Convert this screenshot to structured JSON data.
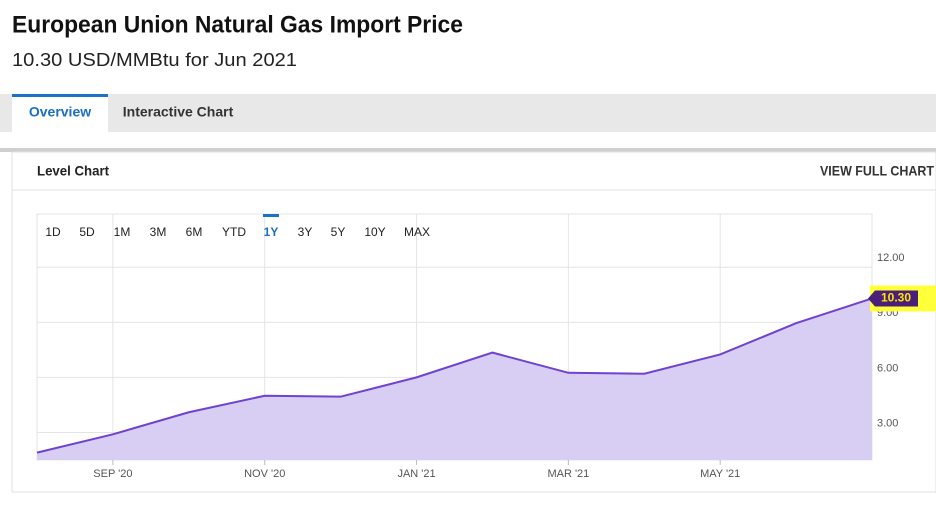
{
  "header": {
    "title": "European Union Natural Gas Import Price",
    "subtitle": "10.30 USD/MMBtu for Jun 2021"
  },
  "tabs": [
    "Overview",
    "Interactive Chart"
  ],
  "active_tab": "Overview",
  "panel": {
    "title": "Level Chart",
    "link": "VIEW FULL CHART"
  },
  "ranges": [
    "1D",
    "5D",
    "1M",
    "3M",
    "6M",
    "YTD",
    "1Y",
    "3Y",
    "5Y",
    "10Y",
    "MAX"
  ],
  "active_range": "1Y",
  "chart_data": {
    "type": "area",
    "categories": [
      null,
      "SEP '20",
      null,
      "NOV '20",
      null,
      "JAN '21",
      null,
      "MAR '21",
      null,
      "MAY '21",
      null,
      null
    ],
    "values": [
      1.9,
      2.9,
      4.1,
      5.0,
      4.95,
      6.0,
      7.35,
      6.25,
      6.2,
      7.25,
      8.95,
      10.3
    ],
    "value_labels": [
      null,
      null,
      null,
      null,
      null,
      null,
      null,
      null,
      null,
      null,
      null,
      "10.30"
    ],
    "color": "#6f42d0",
    "fill": "#d8cdf3",
    "ylim": [
      1.5,
      14.9
    ],
    "yticks": [
      {
        "value": 3,
        "label": "3.00"
      },
      {
        "value": 6,
        "label": "6.00"
      },
      {
        "value": 9,
        "label": "9.00"
      },
      {
        "value": 12,
        "label": "12.00"
      }
    ],
    "grid": true
  }
}
